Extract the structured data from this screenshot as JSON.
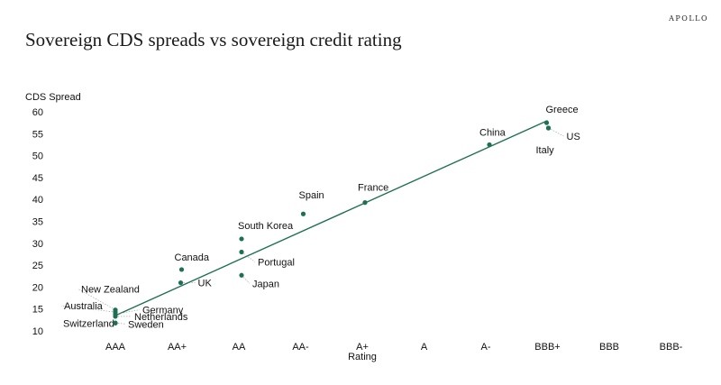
{
  "brand": "APOLLO",
  "title": "Sovereign CDS spreads vs sovereign credit rating",
  "chart_data": {
    "type": "scatter",
    "title": "Sovereign CDS spreads vs sovereign credit rating",
    "ylabel": "CDS Spread",
    "xlabel": "Rating",
    "categories": [
      "AAA",
      "AA+",
      "AA",
      "AA-",
      "A+",
      "A",
      "A-",
      "BBB+",
      "BBB",
      "BBB-"
    ],
    "ylim": [
      10,
      60
    ],
    "yticks": [
      10,
      15,
      20,
      25,
      30,
      35,
      40,
      45,
      50,
      55,
      60
    ],
    "grid": false,
    "points": [
      {
        "label": "New Zealand",
        "x": "AAA",
        "y": 14.8
      },
      {
        "label": "Australia",
        "x": "AAA",
        "y": 14.3
      },
      {
        "label": "Germany",
        "x": "AAA",
        "y": 13.8
      },
      {
        "label": "Netherlands",
        "x": "AAA",
        "y": 13.3
      },
      {
        "label": "Switzerland",
        "x": "AAA",
        "y": 11.8
      },
      {
        "label": "Sweden",
        "x": "AAA",
        "y": 11.8
      },
      {
        "label": "Canada",
        "x": "AA+",
        "y": 24
      },
      {
        "label": "UK",
        "x": "AA+",
        "y": 21
      },
      {
        "label": "South Korea",
        "x": "AA",
        "y": 31
      },
      {
        "label": "Portugal",
        "x": "AA",
        "y": 28
      },
      {
        "label": "Japan",
        "x": "AA",
        "y": 22.7
      },
      {
        "label": "Spain",
        "x": "AA-",
        "y": 36.7
      },
      {
        "label": "France",
        "x": "A+",
        "y": 39.3
      },
      {
        "label": "China",
        "x": "A-",
        "y": 52.5
      },
      {
        "label": "Greece",
        "x": "BBB+",
        "y": 57.5
      },
      {
        "label": "US",
        "x": "BBB+",
        "y": 56.3
      },
      {
        "label": "Italy",
        "x": "BBB+",
        "y": 56.3
      }
    ],
    "trendline": {
      "x_start": "AAA",
      "y_start": 13.5,
      "x_end": "BBB+",
      "y_end": 58
    },
    "color": "#1e7052"
  }
}
